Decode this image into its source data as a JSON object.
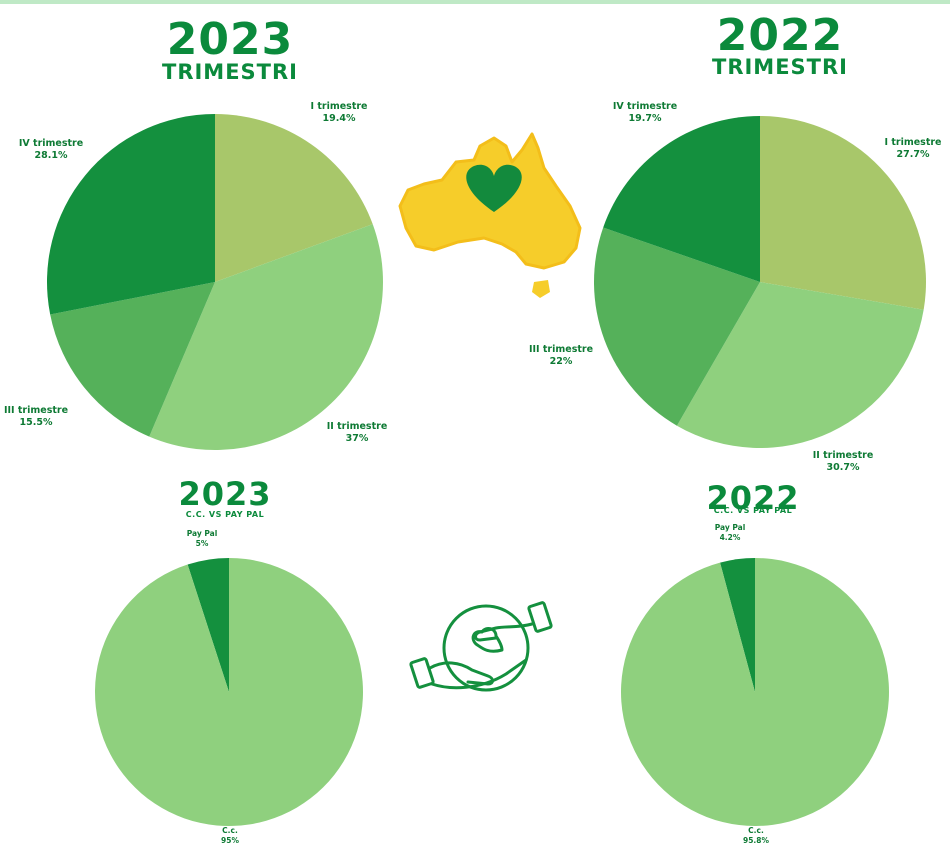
{
  "colors": {
    "title": "#0b8a3c",
    "label": "#0e7a34",
    "olive": "#a8c76a",
    "light": "#8fd07e",
    "mid": "#55b15a",
    "dark": "#14903e",
    "map_yellow": "#f6cd2a",
    "heart": "#138a3d"
  },
  "icons": {
    "map": "australia-map-icon",
    "heart": "heart-icon",
    "hands": "hands-giving-heart-icon"
  },
  "chart_data": [
    {
      "type": "pie",
      "title": "2023",
      "subtitle": "TRIMESTRI",
      "slices": [
        {
          "label": "I trimestre",
          "value": 19.4,
          "value_text": "19.4%",
          "color": "#a8c76a"
        },
        {
          "label": "II trimestre",
          "value": 37,
          "value_text": "37%",
          "color": "#8fd07e"
        },
        {
          "label": "III trimestre",
          "value": 15.5,
          "value_text": "15.5%",
          "color": "#55b15a"
        },
        {
          "label": "IV trimestre",
          "value": 28.1,
          "value_text": "28.1%",
          "color": "#14903e"
        }
      ]
    },
    {
      "type": "pie",
      "title": "2022",
      "subtitle": "TRIMESTRI",
      "slices": [
        {
          "label": "I trimestre",
          "value": 27.7,
          "value_text": "27.7%",
          "color": "#a8c76a"
        },
        {
          "label": "II trimestre",
          "value": 30.7,
          "value_text": "30.7%",
          "color": "#8fd07e"
        },
        {
          "label": "III trimestre",
          "value": 22,
          "value_text": "22%",
          "color": "#55b15a"
        },
        {
          "label": "IV trimestre",
          "value": 19.7,
          "value_text": "19.7%",
          "color": "#14903e"
        }
      ]
    },
    {
      "type": "pie",
      "title": "2023",
      "subtitle": "C.C. VS PAY PAL",
      "slices": [
        {
          "label": "C.c.",
          "value": 95,
          "value_text": "95%",
          "color": "#8fd07e"
        },
        {
          "label": "Pay Pal",
          "value": 5,
          "value_text": "5%",
          "color": "#14903e"
        }
      ]
    },
    {
      "type": "pie",
      "title": "2022",
      "subtitle": "C.C. VS PAY PAL",
      "slices": [
        {
          "label": "C.c.",
          "value": 95.8,
          "value_text": "95.8%",
          "color": "#8fd07e"
        },
        {
          "label": "Pay Pal",
          "value": 4.2,
          "value_text": "4.2%",
          "color": "#14903e"
        }
      ]
    }
  ]
}
